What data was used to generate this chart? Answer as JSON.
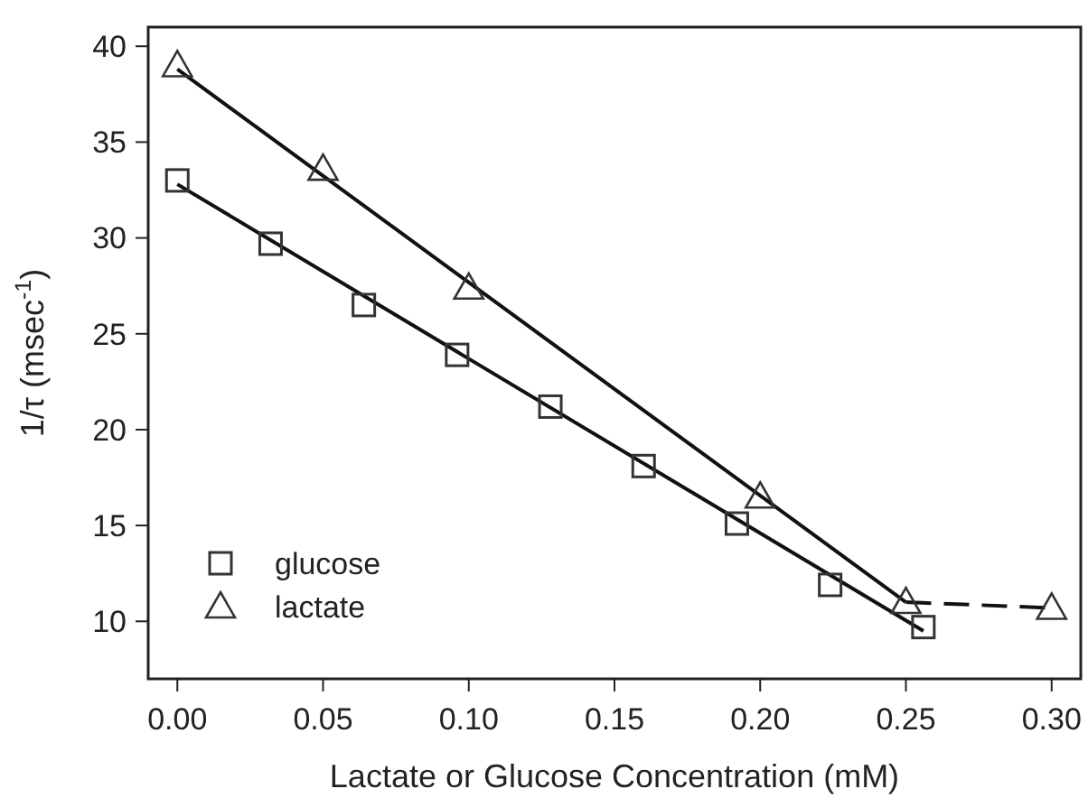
{
  "chart_data": {
    "type": "scatter",
    "xlabel": "Lactate or Glucose Concentration (mM)",
    "ylabel": "1/τ (msec$^{-1}$)",
    "xlim": [
      -0.01,
      0.31
    ],
    "ylim": [
      7,
      41
    ],
    "xticks": [
      {
        "value": 0,
        "label": "0.00"
      },
      {
        "value": 0.05,
        "label": "0.05"
      },
      {
        "value": 0.1,
        "label": "0.10"
      },
      {
        "value": 0.15,
        "label": "0.15"
      },
      {
        "value": 0.2,
        "label": "0.20"
      },
      {
        "value": 0.25,
        "label": "0.25"
      },
      {
        "value": 0.3,
        "label": "0.30"
      }
    ],
    "yticks": [
      10,
      15,
      20,
      25,
      30,
      35,
      40
    ],
    "grid": false,
    "legend": "bottom left",
    "series": [
      {
        "name": "glucose",
        "marker": "square",
        "color": "#333333",
        "x": [
          0,
          0.032,
          0.064,
          0.096,
          0.128,
          0.16,
          0.192,
          0.224,
          0.256
        ],
        "values": [
          33,
          29.7,
          26.5,
          23.9,
          21.2,
          18.1,
          15.1,
          11.9,
          9.7
        ]
      },
      {
        "name": "lactate",
        "marker": "triangle",
        "color": "#333333",
        "x": [
          0,
          0.05,
          0.1,
          0.2,
          0.25,
          0.3
        ],
        "values": [
          39,
          33.6,
          27.4,
          16.5,
          11,
          10.7
        ]
      },
      {
        "type": "line",
        "marker": "none",
        "line_style": "solid",
        "color": "#111111",
        "x": [
          0,
          0.256
        ],
        "values": [
          32.8,
          9.5
        ]
      },
      {
        "type": "line",
        "marker": "none",
        "line_style": "solid",
        "color": "#111111",
        "x": [
          0,
          0.25
        ],
        "values": [
          38.8,
          11
        ]
      },
      {
        "type": "line",
        "marker": "none",
        "line_style": "dashed",
        "color": "#111111",
        "x": [
          0.25,
          0.3
        ],
        "values": [
          11,
          10.7
        ]
      }
    ]
  }
}
